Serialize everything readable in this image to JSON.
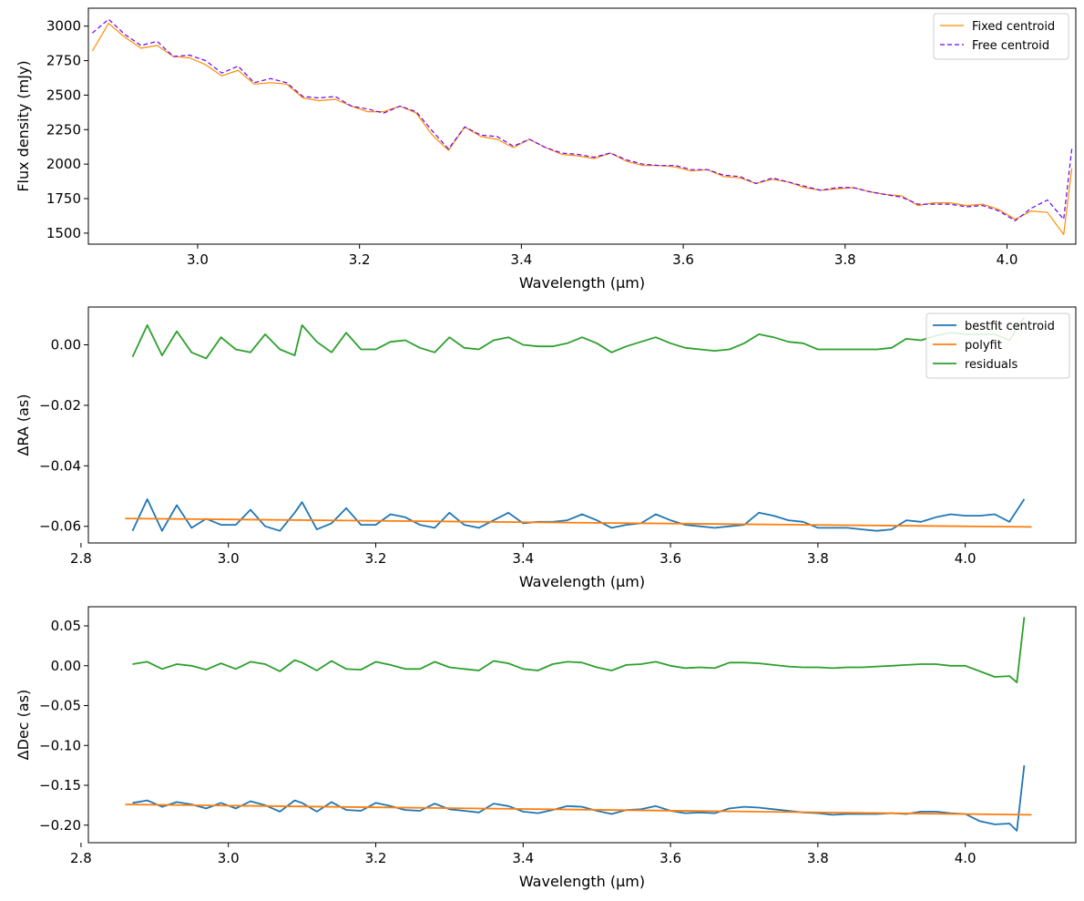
{
  "chart_data": [
    {
      "type": "line",
      "xlabel": "Wavelength (μm)",
      "ylabel": "Flux density (mJy)",
      "xlim": [
        2.865,
        4.085
      ],
      "ylim": [
        1420,
        3130
      ],
      "xticks": [
        3.0,
        3.2,
        3.4,
        3.6,
        3.8,
        4.0
      ],
      "yticks": [
        1500,
        1750,
        2000,
        2250,
        2500,
        2750,
        3000
      ],
      "x_tick_decimals": 1,
      "y_tick_decimals": 0,
      "legend_position": "top-right",
      "series": [
        {
          "name": "Fixed centroid",
          "color": "#ff8c00",
          "dash": "solid",
          "x": [
            2.87,
            2.89,
            2.91,
            2.93,
            2.95,
            2.97,
            2.99,
            3.01,
            3.03,
            3.05,
            3.07,
            3.09,
            3.11,
            3.13,
            3.15,
            3.17,
            3.19,
            3.21,
            3.23,
            3.25,
            3.27,
            3.29,
            3.31,
            3.33,
            3.35,
            3.37,
            3.39,
            3.41,
            3.43,
            3.45,
            3.47,
            3.49,
            3.51,
            3.53,
            3.55,
            3.57,
            3.59,
            3.61,
            3.63,
            3.65,
            3.67,
            3.69,
            3.71,
            3.73,
            3.75,
            3.77,
            3.79,
            3.81,
            3.83,
            3.85,
            3.87,
            3.89,
            3.91,
            3.93,
            3.95,
            3.97,
            3.99,
            4.01,
            4.03,
            4.05,
            4.07,
            4.08
          ],
          "y": [
            2820,
            3020,
            2920,
            2840,
            2860,
            2780,
            2770,
            2720,
            2640,
            2680,
            2580,
            2590,
            2580,
            2480,
            2460,
            2470,
            2420,
            2380,
            2380,
            2420,
            2370,
            2210,
            2100,
            2270,
            2200,
            2180,
            2120,
            2180,
            2120,
            2070,
            2060,
            2040,
            2080,
            2020,
            1990,
            1990,
            1980,
            1950,
            1960,
            1910,
            1900,
            1860,
            1890,
            1870,
            1830,
            1810,
            1820,
            1830,
            1800,
            1780,
            1770,
            1700,
            1720,
            1720,
            1700,
            1710,
            1670,
            1600,
            1660,
            1650,
            1490,
            1970
          ]
        },
        {
          "name": "Free centroid",
          "color": "#6600ff",
          "dash": "dashed",
          "x": [
            2.87,
            2.89,
            2.91,
            2.93,
            2.95,
            2.97,
            2.99,
            3.01,
            3.03,
            3.05,
            3.07,
            3.09,
            3.11,
            3.13,
            3.15,
            3.17,
            3.19,
            3.21,
            3.23,
            3.25,
            3.27,
            3.29,
            3.31,
            3.33,
            3.35,
            3.37,
            3.39,
            3.41,
            3.43,
            3.45,
            3.47,
            3.49,
            3.51,
            3.53,
            3.55,
            3.57,
            3.59,
            3.61,
            3.63,
            3.65,
            3.67,
            3.69,
            3.71,
            3.73,
            3.75,
            3.77,
            3.79,
            3.81,
            3.83,
            3.85,
            3.87,
            3.89,
            3.91,
            3.93,
            3.95,
            3.97,
            3.99,
            4.01,
            4.03,
            4.05,
            4.07,
            4.08
          ],
          "y": [
            2950,
            3050,
            2940,
            2860,
            2890,
            2780,
            2790,
            2750,
            2660,
            2710,
            2590,
            2620,
            2590,
            2490,
            2480,
            2490,
            2420,
            2400,
            2370,
            2420,
            2380,
            2240,
            2110,
            2270,
            2210,
            2200,
            2130,
            2180,
            2120,
            2080,
            2070,
            2050,
            2080,
            2030,
            2000,
            1990,
            1990,
            1960,
            1960,
            1920,
            1910,
            1860,
            1900,
            1870,
            1840,
            1810,
            1830,
            1830,
            1800,
            1780,
            1760,
            1710,
            1710,
            1710,
            1690,
            1700,
            1660,
            1590,
            1680,
            1740,
            1600,
            2110
          ]
        }
      ]
    },
    {
      "type": "line",
      "xlabel": "Wavelength (μm)",
      "ylabel": "ΔRA (as)",
      "xlim": [
        2.81,
        4.15
      ],
      "ylim": [
        -0.0655,
        0.0125
      ],
      "xticks": [
        2.8,
        3.0,
        3.2,
        3.4,
        3.6,
        3.8,
        4.0
      ],
      "yticks": [
        -0.06,
        -0.04,
        -0.02,
        0.0
      ],
      "x_tick_decimals": 1,
      "y_tick_decimals": 2,
      "legend_position": "top-right",
      "series": [
        {
          "name": "bestfit centroid",
          "color": "#1f77b4",
          "dash": "solid",
          "x": [
            2.87,
            2.89,
            2.91,
            2.93,
            2.95,
            2.97,
            2.99,
            3.01,
            3.03,
            3.05,
            3.07,
            3.09,
            3.1,
            3.12,
            3.14,
            3.16,
            3.18,
            3.2,
            3.22,
            3.24,
            3.26,
            3.28,
            3.3,
            3.32,
            3.34,
            3.36,
            3.38,
            3.4,
            3.42,
            3.44,
            3.46,
            3.48,
            3.5,
            3.52,
            3.54,
            3.56,
            3.58,
            3.6,
            3.62,
            3.64,
            3.66,
            3.68,
            3.7,
            3.72,
            3.74,
            3.76,
            3.78,
            3.8,
            3.82,
            3.84,
            3.86,
            3.88,
            3.9,
            3.92,
            3.94,
            3.96,
            3.98,
            4.0,
            4.02,
            4.04,
            4.06,
            4.08
          ],
          "y": [
            -0.0615,
            -0.051,
            -0.0615,
            -0.053,
            -0.0605,
            -0.0575,
            -0.0595,
            -0.0595,
            -0.0545,
            -0.06,
            -0.0615,
            -0.0555,
            -0.052,
            -0.061,
            -0.059,
            -0.054,
            -0.0595,
            -0.0595,
            -0.056,
            -0.057,
            -0.0595,
            -0.0605,
            -0.0555,
            -0.0595,
            -0.0605,
            -0.058,
            -0.0555,
            -0.059,
            -0.0585,
            -0.0585,
            -0.058,
            -0.056,
            -0.058,
            -0.0605,
            -0.0595,
            -0.059,
            -0.056,
            -0.058,
            -0.0595,
            -0.06,
            -0.0605,
            -0.06,
            -0.0595,
            -0.0555,
            -0.0565,
            -0.058,
            -0.0585,
            -0.0605,
            -0.0605,
            -0.0605,
            -0.061,
            -0.0615,
            -0.061,
            -0.058,
            -0.0585,
            -0.057,
            -0.056,
            -0.0565,
            -0.0565,
            -0.056,
            -0.0585,
            -0.051
          ]
        },
        {
          "name": "polyfit",
          "color": "#ff7f0e",
          "dash": "solid",
          "x": [
            2.86,
            4.09
          ],
          "y": [
            -0.0574,
            -0.0602
          ]
        },
        {
          "name": "residuals",
          "color": "#2ca02c",
          "dash": "solid",
          "x": [
            2.87,
            2.89,
            2.91,
            2.93,
            2.95,
            2.97,
            2.99,
            3.01,
            3.03,
            3.05,
            3.07,
            3.09,
            3.1,
            3.12,
            3.14,
            3.16,
            3.18,
            3.2,
            3.22,
            3.24,
            3.26,
            3.28,
            3.3,
            3.32,
            3.34,
            3.36,
            3.38,
            3.4,
            3.42,
            3.44,
            3.46,
            3.48,
            3.5,
            3.52,
            3.54,
            3.56,
            3.58,
            3.6,
            3.62,
            3.64,
            3.66,
            3.68,
            3.7,
            3.72,
            3.74,
            3.76,
            3.78,
            3.8,
            3.82,
            3.84,
            3.86,
            3.88,
            3.9,
            3.92,
            3.94,
            3.96,
            3.98,
            4.0,
            4.02,
            4.04,
            4.06,
            4.08
          ],
          "y": [
            -0.004,
            0.0065,
            -0.0035,
            0.0045,
            -0.0025,
            -0.0045,
            0.0025,
            -0.0015,
            -0.0025,
            0.0035,
            -0.0015,
            -0.0035,
            0.0065,
            0.001,
            -0.0025,
            0.004,
            -0.0015,
            -0.0015,
            0.001,
            0.0015,
            -0.001,
            -0.0025,
            0.0025,
            -0.001,
            -0.0015,
            0.0015,
            0.0025,
            0.0,
            -0.0005,
            -0.0005,
            0.0005,
            0.0025,
            0.0005,
            -0.0025,
            -0.0005,
            0.001,
            0.0025,
            0.0005,
            -0.001,
            -0.0015,
            -0.002,
            -0.0015,
            0.0005,
            0.0035,
            0.0025,
            0.001,
            0.0005,
            -0.0015,
            -0.0015,
            -0.0015,
            -0.0015,
            -0.0015,
            -0.001,
            0.002,
            0.0015,
            0.003,
            0.004,
            0.0035,
            0.0035,
            0.0035,
            0.0015,
            0.009
          ]
        }
      ]
    },
    {
      "type": "line",
      "xlabel": "Wavelength (μm)",
      "ylabel": "ΔDec (as)",
      "xlim": [
        2.81,
        4.15
      ],
      "ylim": [
        -0.222,
        0.074
      ],
      "xticks": [
        2.8,
        3.0,
        3.2,
        3.4,
        3.6,
        3.8,
        4.0
      ],
      "yticks": [
        -0.2,
        -0.15,
        -0.1,
        -0.05,
        0.0,
        0.05
      ],
      "x_tick_decimals": 1,
      "y_tick_decimals": 2,
      "legend_position": "none",
      "series": [
        {
          "name": "",
          "color": "#1f77b4",
          "dash": "solid",
          "x": [
            2.87,
            2.89,
            2.91,
            2.93,
            2.95,
            2.97,
            2.99,
            3.01,
            3.03,
            3.05,
            3.07,
            3.09,
            3.1,
            3.12,
            3.14,
            3.16,
            3.18,
            3.2,
            3.22,
            3.24,
            3.26,
            3.28,
            3.3,
            3.32,
            3.34,
            3.36,
            3.38,
            3.4,
            3.42,
            3.44,
            3.46,
            3.48,
            3.5,
            3.52,
            3.54,
            3.56,
            3.58,
            3.6,
            3.62,
            3.64,
            3.66,
            3.68,
            3.7,
            3.72,
            3.74,
            3.76,
            3.78,
            3.8,
            3.82,
            3.84,
            3.86,
            3.88,
            3.9,
            3.92,
            3.94,
            3.96,
            3.98,
            4.0,
            4.02,
            4.04,
            4.06,
            4.07,
            4.08
          ],
          "y": [
            -0.172,
            -0.169,
            -0.177,
            -0.171,
            -0.174,
            -0.179,
            -0.172,
            -0.179,
            -0.17,
            -0.175,
            -0.183,
            -0.169,
            -0.172,
            -0.183,
            -0.171,
            -0.181,
            -0.182,
            -0.172,
            -0.176,
            -0.181,
            -0.182,
            -0.173,
            -0.18,
            -0.182,
            -0.184,
            -0.173,
            -0.176,
            -0.183,
            -0.185,
            -0.181,
            -0.176,
            -0.177,
            -0.182,
            -0.186,
            -0.181,
            -0.18,
            -0.176,
            -0.182,
            -0.185,
            -0.184,
            -0.185,
            -0.179,
            -0.177,
            -0.178,
            -0.18,
            -0.182,
            -0.184,
            -0.185,
            -0.187,
            -0.186,
            -0.186,
            -0.186,
            -0.185,
            -0.186,
            -0.183,
            -0.183,
            -0.185,
            -0.186,
            -0.195,
            -0.199,
            -0.198,
            -0.207,
            -0.125
          ]
        },
        {
          "name": "",
          "color": "#ff7f0e",
          "dash": "solid",
          "x": [
            2.86,
            4.09
          ],
          "y": [
            -0.174,
            -0.187
          ]
        },
        {
          "name": "",
          "color": "#2ca02c",
          "dash": "solid",
          "x": [
            2.87,
            2.89,
            2.91,
            2.93,
            2.95,
            2.97,
            2.99,
            3.01,
            3.03,
            3.05,
            3.07,
            3.09,
            3.1,
            3.12,
            3.14,
            3.16,
            3.18,
            3.2,
            3.22,
            3.24,
            3.26,
            3.28,
            3.3,
            3.32,
            3.34,
            3.36,
            3.38,
            3.4,
            3.42,
            3.44,
            3.46,
            3.48,
            3.5,
            3.52,
            3.54,
            3.56,
            3.58,
            3.6,
            3.62,
            3.64,
            3.66,
            3.68,
            3.7,
            3.72,
            3.74,
            3.76,
            3.78,
            3.8,
            3.82,
            3.84,
            3.86,
            3.88,
            3.9,
            3.92,
            3.94,
            3.96,
            3.98,
            4.0,
            4.02,
            4.04,
            4.06,
            4.07,
            4.08
          ],
          "y": [
            0.002,
            0.005,
            -0.004,
            0.002,
            0.0,
            -0.005,
            0.003,
            -0.004,
            0.005,
            0.002,
            -0.007,
            0.007,
            0.004,
            -0.006,
            0.006,
            -0.004,
            -0.005,
            0.005,
            0.001,
            -0.004,
            -0.004,
            0.005,
            -0.002,
            -0.004,
            -0.006,
            0.006,
            0.003,
            -0.004,
            -0.006,
            0.002,
            0.005,
            0.004,
            -0.002,
            -0.006,
            0.001,
            0.002,
            0.005,
            0.0,
            -0.003,
            -0.002,
            -0.003,
            0.004,
            0.004,
            0.003,
            0.001,
            -0.001,
            -0.002,
            -0.002,
            -0.003,
            -0.002,
            -0.002,
            -0.001,
            0.0,
            0.001,
            0.002,
            0.002,
            0.0,
            0.0,
            -0.007,
            -0.014,
            -0.013,
            -0.021,
            0.061
          ]
        }
      ]
    }
  ]
}
